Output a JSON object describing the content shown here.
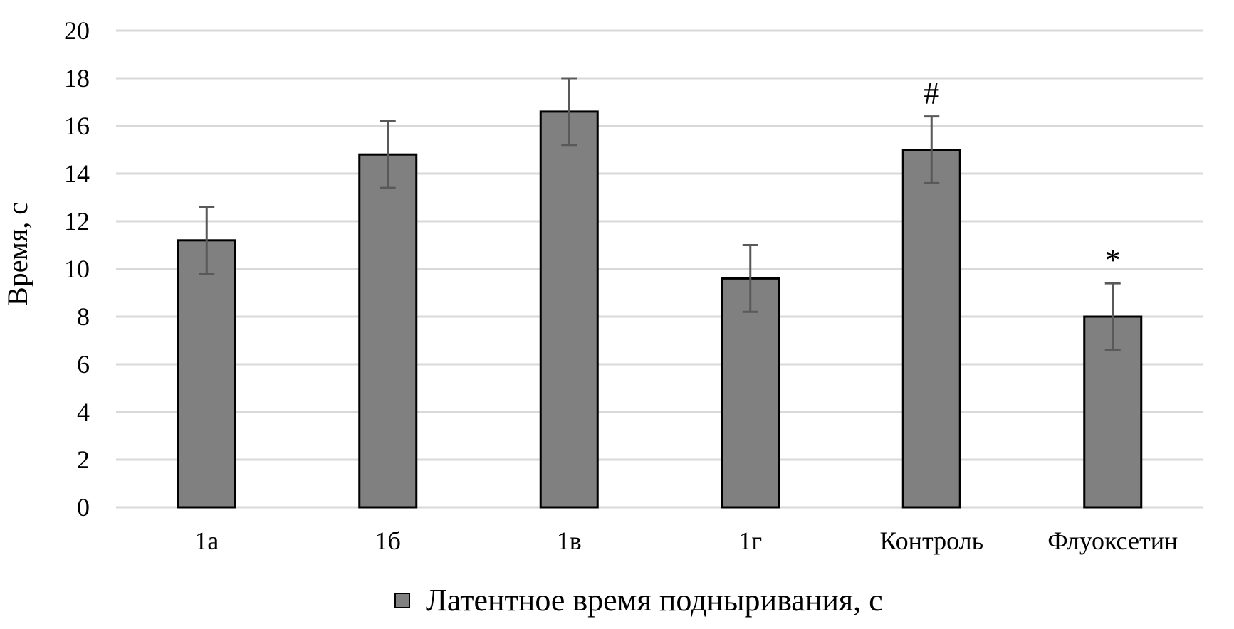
{
  "chart_data": {
    "type": "bar",
    "title": "",
    "xlabel": "",
    "ylabel": "Время, с",
    "ylim": [
      0,
      20
    ],
    "yticks": [
      0,
      2,
      4,
      6,
      8,
      10,
      12,
      14,
      16,
      18,
      20
    ],
    "grid": true,
    "legend": "bottom",
    "categories": [
      "1а",
      "1б",
      "1в",
      "1г",
      "Контроль",
      "Флуоксетин"
    ],
    "series": [
      {
        "name": "Латентное время подныривания, с",
        "color": "#808080",
        "values": [
          11.2,
          14.8,
          16.6,
          9.6,
          15.0,
          8.0
        ],
        "errors": [
          1.4,
          1.4,
          1.4,
          1.4,
          1.4,
          1.4
        ]
      }
    ],
    "annotations": [
      {
        "category": "Контроль",
        "text": "#"
      },
      {
        "category": "Флуоксетин",
        "text": "*"
      }
    ]
  }
}
